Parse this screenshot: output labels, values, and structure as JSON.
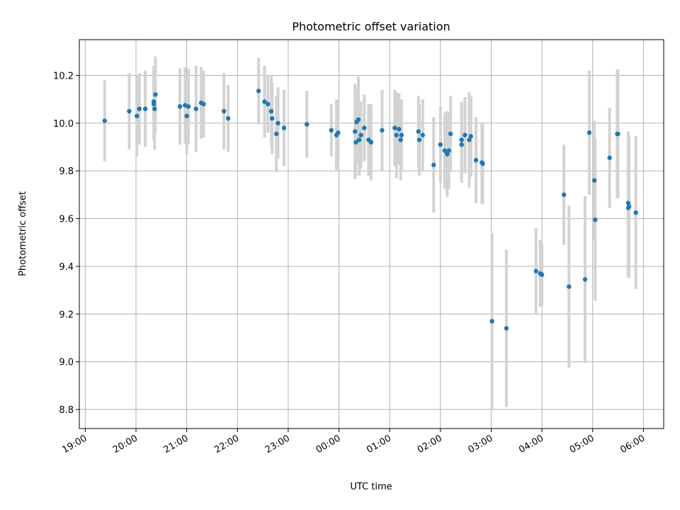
{
  "chart_data": {
    "type": "scatter",
    "title": "Photometric offset variation",
    "xlabel": "UTC time",
    "ylabel": "Photometric offset",
    "x_ticks": [
      "19:00",
      "20:00",
      "21:00",
      "22:00",
      "23:00",
      "00:00",
      "01:00",
      "02:00",
      "03:00",
      "04:00",
      "05:00",
      "06:00"
    ],
    "y_ticks": [
      "8.8",
      "9.0",
      "9.2",
      "9.4",
      "9.6",
      "9.8",
      "10.0",
      "10.2"
    ],
    "xlim": [
      "18:53",
      "06:24"
    ],
    "ylim": [
      8.72,
      10.35
    ],
    "grid": true,
    "colors": {
      "point": "#1f77b4",
      "errorbar": "#d3d3d3"
    },
    "series": [
      {
        "x": [
          "19:23",
          "19:52",
          "20:01",
          "20:04",
          "20:11",
          "20:21",
          "20:21",
          "20:22",
          "20:23",
          "20:52",
          "20:58",
          "21:00",
          "21:02",
          "21:11",
          "21:17",
          "21:20",
          "21:44",
          "21:49",
          "22:25",
          "22:32",
          "22:36",
          "22:40",
          "22:41",
          "22:46",
          "22:48",
          "22:55",
          "23:22",
          "23:51",
          "23:57",
          "23:59",
          "00:19",
          "00:20",
          "00:21",
          "00:23",
          "00:24",
          "00:26",
          "00:30",
          "00:35",
          "00:38",
          "00:51",
          "01:06",
          "01:08",
          "01:11",
          "01:13",
          "01:14",
          "01:34",
          "01:35",
          "01:39",
          "01:52",
          "02:00",
          "02:05",
          "02:08",
          "02:10",
          "02:12",
          "02:25",
          "02:25",
          "02:29",
          "02:34",
          "02:36",
          "02:42",
          "02:49",
          "02:50",
          "03:01",
          "03:18",
          "03:53",
          "03:58",
          "04:00",
          "04:26",
          "04:32",
          "04:51",
          "04:56",
          "05:02",
          "05:03",
          "05:20",
          "05:29",
          "05:30",
          "05:42",
          "05:42",
          "05:43",
          "05:51"
        ],
        "y": [
          10.01,
          10.05,
          10.03,
          10.06,
          10.06,
          10.09,
          10.08,
          10.06,
          10.12,
          10.07,
          10.075,
          10.03,
          10.07,
          10.06,
          10.085,
          10.08,
          10.05,
          10.02,
          10.135,
          10.09,
          10.08,
          10.05,
          10.02,
          9.955,
          10.0,
          9.98,
          9.995,
          9.97,
          9.95,
          9.96,
          9.965,
          9.92,
          10.005,
          10.015,
          9.93,
          9.95,
          9.98,
          9.93,
          9.92,
          9.97,
          9.98,
          9.95,
          9.975,
          9.93,
          9.95,
          9.965,
          9.93,
          9.95,
          9.825,
          9.91,
          9.885,
          9.87,
          9.885,
          9.955,
          9.91,
          9.93,
          9.95,
          9.93,
          9.945,
          9.845,
          9.835,
          9.83,
          9.17,
          9.14,
          9.38,
          9.37,
          9.365,
          9.7,
          9.315,
          9.345,
          9.96,
          9.76,
          9.595,
          9.855,
          9.955,
          9.955,
          9.665,
          9.645,
          9.65,
          9.625
        ],
        "err": [
          0.17,
          0.16,
          0.17,
          0.15,
          0.16,
          0.15,
          0.15,
          0.17,
          0.16,
          0.16,
          0.16,
          0.16,
          0.16,
          0.18,
          0.15,
          0.14,
          0.16,
          0.14,
          0.14,
          0.15,
          0.12,
          0.15,
          0.15,
          0.16,
          0.15,
          0.16,
          0.14,
          0.11,
          0.15,
          0.14,
          0.2,
          0.14,
          0.14,
          0.18,
          0.15,
          0.14,
          0.14,
          0.15,
          0.16,
          0.17,
          0.16,
          0.18,
          0.15,
          0.17,
          0.15,
          0.15,
          0.15,
          0.15,
          0.2,
          0.16,
          0.16,
          0.18,
          0.16,
          0.16,
          0.16,
          0.16,
          0.16,
          0.2,
          0.17,
          0.18,
          0.17,
          0.17,
          0.37,
          0.33,
          0.18,
          0.14,
          0.13,
          0.21,
          0.34,
          0.35,
          0.26,
          0.25,
          0.34,
          0.21,
          0.27,
          0.27,
          0.3,
          0.29,
          0.3,
          0.32
        ]
      }
    ]
  }
}
